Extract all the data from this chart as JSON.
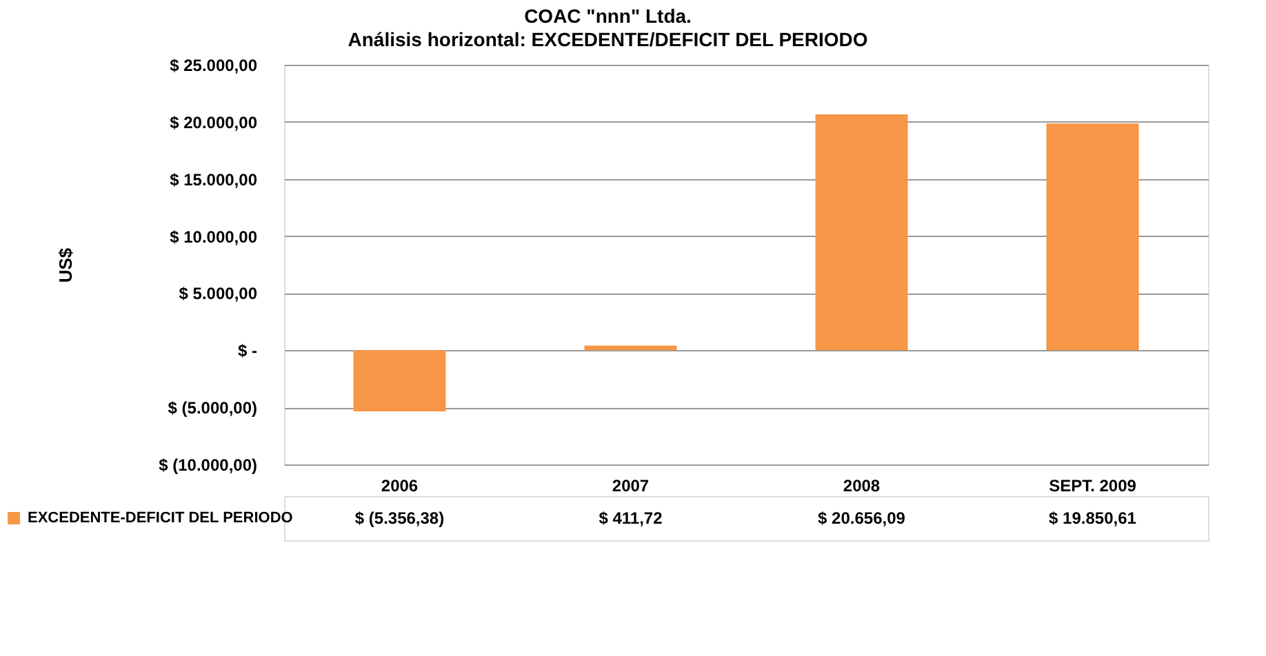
{
  "chart_data": {
    "type": "bar",
    "title": "COAC \"nnn\" Ltda.",
    "subtitle": "Análisis horizontal: EXCEDENTE/DEFICIT DEL PERIODO",
    "ylabel": "US$",
    "categories": [
      "2006",
      "2007",
      "2008",
      "SEPT. 2009"
    ],
    "series": [
      {
        "name": "EXCEDENTE-DEFICIT  DEL PERIODO",
        "color": "#f79646",
        "values": [
          -5356.38,
          411.72,
          20656.09,
          19850.61
        ],
        "value_labels": [
          "$ (5.356,38)",
          "$ 411,72",
          "$ 20.656,09",
          "$ 19.850,61"
        ]
      }
    ],
    "ylim": [
      -10000,
      25000
    ],
    "yticks": [
      {
        "value": -10000,
        "label": "$ (10.000,00)"
      },
      {
        "value": -5000,
        "label": "$ (5.000,00)"
      },
      {
        "value": 0,
        "label": "$ -"
      },
      {
        "value": 5000,
        "label": "$ 5.000,00"
      },
      {
        "value": 10000,
        "label": "$ 10.000,00"
      },
      {
        "value": 15000,
        "label": "$ 15.000,00"
      },
      {
        "value": 20000,
        "label": "$ 20.000,00"
      },
      {
        "value": 25000,
        "label": "$ 25.000,00"
      }
    ],
    "grid": "y",
    "legend": "bottom left"
  }
}
